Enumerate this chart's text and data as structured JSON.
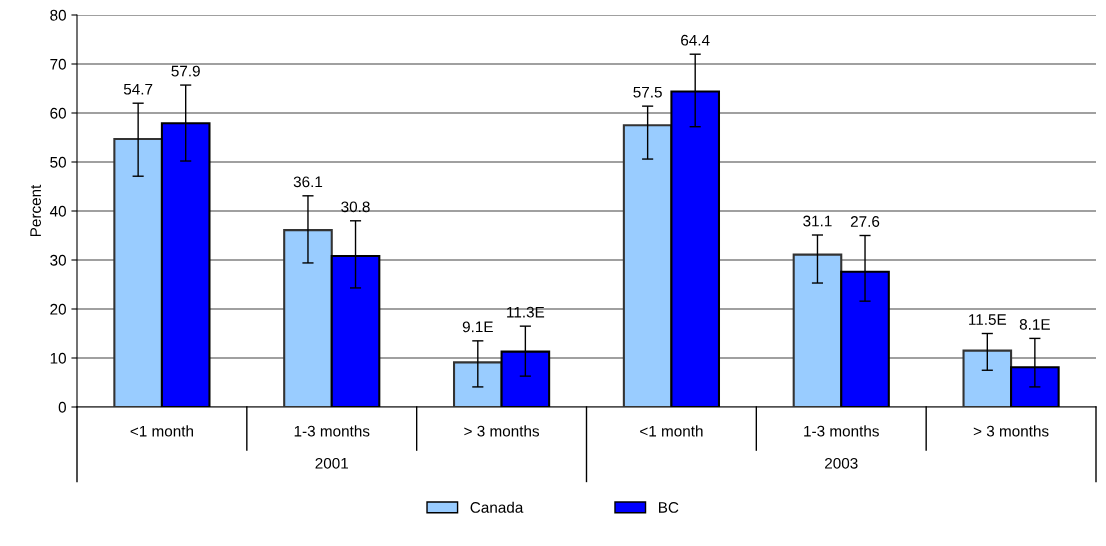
{
  "chart_data": {
    "type": "bar",
    "ylabel": "Percent",
    "categories": [
      "<1 month",
      "1-3 months",
      "> 3 months",
      "<1 month",
      "1-3 months",
      "> 3 months"
    ],
    "series": [
      {
        "name": "Canada",
        "color": "#99ccff",
        "values": [
          54.7,
          36.1,
          9.1,
          57.5,
          31.1,
          11.5
        ],
        "value_labels": [
          "54.7",
          "36.1",
          "9.1E",
          "57.5",
          "31.1",
          "11.5E"
        ],
        "errors": [
          [
            47.1,
            62.0
          ],
          [
            29.4,
            43.1
          ],
          [
            4.1,
            13.5
          ],
          [
            50.6,
            61.4
          ],
          [
            25.3,
            35.1
          ],
          [
            7.5,
            15.0
          ]
        ]
      },
      {
        "name": "BC",
        "color": "#0000ff",
        "values": [
          57.9,
          30.8,
          11.3,
          64.4,
          27.6,
          8.1
        ],
        "value_labels": [
          "57.9",
          "30.8",
          "11.3E",
          "64.4",
          "27.6",
          "8.1E"
        ],
        "errors": [
          [
            50.2,
            65.7
          ],
          [
            24.3,
            38.0
          ],
          [
            6.3,
            16.5
          ],
          [
            57.2,
            72.0
          ],
          [
            21.6,
            35.0
          ],
          [
            4.1,
            14.0
          ]
        ]
      }
    ],
    "annotations": [
      "2001",
      "2003"
    ],
    "ylim": [
      0,
      80
    ],
    "yticks": [
      0,
      10,
      20,
      30,
      40,
      50,
      60,
      70,
      80
    ],
    "grid": "y",
    "legend": "bottom"
  }
}
